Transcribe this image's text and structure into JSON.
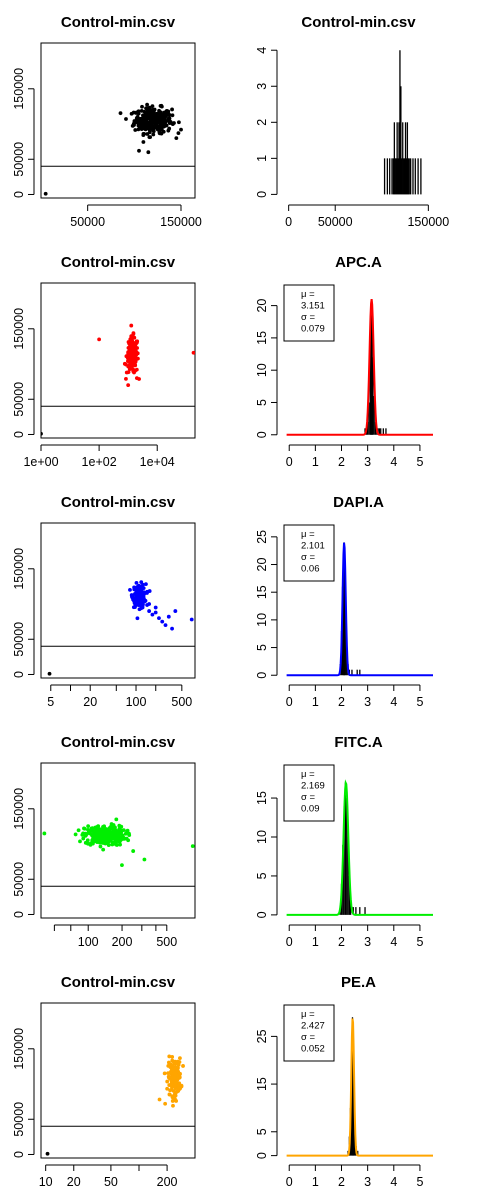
{
  "chart_data": [
    {
      "type": "scatter",
      "title": "Control-min.csv",
      "color": "#000000",
      "x_scale": "linear",
      "xlim": [
        0,
        165000
      ],
      "ylim": [
        -5000,
        215000
      ],
      "x_ticks": [
        {
          "v": 50000,
          "label": "50000"
        },
        {
          "v": 150000,
          "label": "150000"
        }
      ],
      "y_ticks": [
        {
          "v": 0,
          "label": "0"
        },
        {
          "v": 50000,
          "label": "50000"
        },
        {
          "v": 150000,
          "label": "150000"
        }
      ],
      "threshold_y": 40000,
      "cluster": {
        "x_center": 120000,
        "y_center": 105000,
        "x_spread": 10000,
        "y_spread": 9000,
        "n": 300
      },
      "points": [
        [
          5000,
          1000
        ],
        [
          105000,
          62000
        ],
        [
          145000,
          80000
        ],
        [
          115000,
          60000
        ],
        [
          150000,
          92000
        ]
      ]
    },
    {
      "type": "histogram",
      "title": "Control-min.csv",
      "color": "#000000",
      "xlim": [
        -5000,
        155000
      ],
      "ylim": [
        -0.1,
        4.2
      ],
      "x_ticks": [
        {
          "v": 0,
          "label": "0"
        },
        {
          "v": 50000,
          "label": "50000"
        },
        {
          "v": 150000,
          "label": "150000"
        }
      ],
      "y_ticks": [
        {
          "v": 0,
          "label": "0"
        },
        {
          "v": 1,
          "label": "1"
        },
        {
          "v": 2,
          "label": "2"
        },
        {
          "v": 3,
          "label": "3"
        },
        {
          "v": 4,
          "label": "4"
        }
      ],
      "bars": [
        [
          103000,
          1
        ],
        [
          106000,
          1
        ],
        [
          108500,
          1
        ],
        [
          111000,
          1
        ],
        [
          112500,
          1
        ],
        [
          113500,
          2
        ],
        [
          114500,
          1
        ],
        [
          115500,
          1
        ],
        [
          116500,
          2
        ],
        [
          117500,
          1
        ],
        [
          118500,
          2
        ],
        [
          119500,
          4
        ],
        [
          120500,
          3
        ],
        [
          121500,
          1
        ],
        [
          122500,
          2
        ],
        [
          123500,
          1
        ],
        [
          124500,
          1
        ],
        [
          125500,
          2
        ],
        [
          126500,
          1
        ],
        [
          127500,
          2
        ],
        [
          128500,
          1
        ],
        [
          129500,
          1
        ],
        [
          131000,
          1
        ],
        [
          133500,
          1
        ],
        [
          136000,
          1
        ],
        [
          139000,
          1
        ],
        [
          142000,
          1
        ]
      ]
    },
    {
      "type": "scatter",
      "title": "Control-min.csv",
      "color": "#ff0000",
      "x_scale": "log",
      "xlim": [
        0,
        5.3
      ],
      "ylim": [
        -5000,
        215000
      ],
      "x_ticks": [
        {
          "v": 0,
          "label": "1e+00"
        },
        {
          "v": 2,
          "label": "1e+02"
        },
        {
          "v": 4,
          "label": "1e+04"
        }
      ],
      "y_ticks": [
        {
          "v": 0,
          "label": "0"
        },
        {
          "v": 50000,
          "label": "50000"
        },
        {
          "v": 150000,
          "label": "150000"
        }
      ],
      "threshold_y": 40000,
      "cluster": {
        "x_center": 3.15,
        "y_center": 112000,
        "x_spread": 0.1,
        "y_spread": 13000,
        "n": 150
      },
      "points": [
        [
          0,
          1000
        ],
        [
          2.0,
          135000
        ],
        [
          5.25,
          116000
        ],
        [
          3.0,
          70000
        ],
        [
          3.3,
          80000
        ]
      ]
    },
    {
      "type": "histogram",
      "title": "APC.A",
      "color": "#ff0000",
      "xlim": [
        -0.2,
        5.5
      ],
      "ylim": [
        -0.5,
        23.5
      ],
      "x_ticks": [
        {
          "v": 0,
          "label": "0"
        },
        {
          "v": 1,
          "label": "1"
        },
        {
          "v": 2,
          "label": "2"
        },
        {
          "v": 3,
          "label": "3"
        },
        {
          "v": 4,
          "label": "4"
        },
        {
          "v": 5,
          "label": "5"
        }
      ],
      "y_ticks": [
        {
          "v": 0,
          "label": "0"
        },
        {
          "v": 5,
          "label": "5"
        },
        {
          "v": 10,
          "label": "10"
        },
        {
          "v": 15,
          "label": "15"
        },
        {
          "v": 20,
          "label": "20"
        }
      ],
      "legend": [
        "μ =",
        "3.151",
        "σ =",
        "0.079"
      ],
      "normal": {
        "mu": 3.151,
        "sigma": 0.079,
        "peak": 21
      },
      "bars": [
        [
          2.9,
          1
        ],
        [
          2.95,
          1
        ],
        [
          3.0,
          2
        ],
        [
          3.05,
          5
        ],
        [
          3.1,
          13
        ],
        [
          3.125,
          16
        ],
        [
          3.15,
          21
        ],
        [
          3.175,
          17
        ],
        [
          3.2,
          12
        ],
        [
          3.25,
          6
        ],
        [
          3.3,
          2
        ],
        [
          3.35,
          1
        ],
        [
          3.4,
          1
        ],
        [
          3.45,
          1
        ],
        [
          3.5,
          1
        ],
        [
          3.6,
          1
        ],
        [
          3.7,
          1
        ]
      ]
    },
    {
      "type": "scatter",
      "title": "Control-min.csv",
      "color": "#0000ff",
      "x_scale": "log",
      "xlim": [
        0.55,
        2.9
      ],
      "ylim": [
        -5000,
        215000
      ],
      "x_ticks": [
        {
          "v": 0.699,
          "label": "5"
        },
        {
          "v": 1.301,
          "label": "20"
        },
        {
          "v": 2.0,
          "label": "100"
        },
        {
          "v": 2.699,
          "label": "500"
        }
      ],
      "x_minor_ticks": [
        1.0,
        1.699,
        2.301
      ],
      "y_ticks": [
        {
          "v": 0,
          "label": "0"
        },
        {
          "v": 50000,
          "label": "50000"
        },
        {
          "v": 150000,
          "label": "150000"
        }
      ],
      "threshold_y": 40000,
      "cluster": {
        "x_center": 2.05,
        "y_center": 112000,
        "x_spread": 0.05,
        "y_spread": 8000,
        "n": 150
      },
      "points": [
        [
          0.68,
          1000
        ],
        [
          2.1,
          95000
        ],
        [
          2.2,
          90000
        ],
        [
          2.25,
          85000
        ],
        [
          2.3,
          88000
        ],
        [
          2.35,
          80000
        ],
        [
          2.4,
          75000
        ],
        [
          2.45,
          70000
        ],
        [
          2.5,
          82000
        ],
        [
          2.55,
          65000
        ],
        [
          2.6,
          90000
        ],
        [
          2.85,
          78000
        ],
        [
          2.2,
          100000
        ],
        [
          2.3,
          95000
        ]
      ]
    },
    {
      "type": "histogram",
      "title": "DAPI.A",
      "color": "#0000ff",
      "xlim": [
        -0.2,
        5.5
      ],
      "ylim": [
        -0.5,
        27.5
      ],
      "x_ticks": [
        {
          "v": 0,
          "label": "0"
        },
        {
          "v": 1,
          "label": "1"
        },
        {
          "v": 2,
          "label": "2"
        },
        {
          "v": 3,
          "label": "3"
        },
        {
          "v": 4,
          "label": "4"
        },
        {
          "v": 5,
          "label": "5"
        }
      ],
      "y_ticks": [
        {
          "v": 0,
          "label": "0"
        },
        {
          "v": 5,
          "label": "5"
        },
        {
          "v": 10,
          "label": "10"
        },
        {
          "v": 15,
          "label": "15"
        },
        {
          "v": 20,
          "label": "20"
        },
        {
          "v": 25,
          "label": "25"
        }
      ],
      "legend": [
        "μ =",
        "2.101",
        "σ =",
        "0.06"
      ],
      "normal": {
        "mu": 2.101,
        "sigma": 0.06,
        "peak": 24
      },
      "bars": [
        [
          1.95,
          2
        ],
        [
          2.0,
          8
        ],
        [
          2.04,
          16
        ],
        [
          2.08,
          22
        ],
        [
          2.1,
          24
        ],
        [
          2.12,
          21
        ],
        [
          2.16,
          14
        ],
        [
          2.2,
          6
        ],
        [
          2.25,
          2
        ],
        [
          2.3,
          1
        ],
        [
          2.4,
          1
        ],
        [
          2.6,
          1
        ],
        [
          2.7,
          1
        ]
      ]
    },
    {
      "type": "scatter",
      "title": "Control-min.csv",
      "color": "#00ee00",
      "x_scale": "log",
      "xlim": [
        1.58,
        2.95
      ],
      "ylim": [
        -5000,
        215000
      ],
      "x_ticks": [
        {
          "v": 2.0,
          "label": "100"
        },
        {
          "v": 2.301,
          "label": "200"
        },
        {
          "v": 2.699,
          "label": "500"
        }
      ],
      "x_minor_ticks": [
        1.699,
        1.845,
        2.477,
        2.602
      ],
      "y_ticks": [
        {
          "v": 0,
          "label": "0"
        },
        {
          "v": 50000,
          "label": "50000"
        },
        {
          "v": 150000,
          "label": "150000"
        }
      ],
      "threshold_y": 40000,
      "cluster": {
        "x_center": 2.15,
        "y_center": 112000,
        "x_spread": 0.09,
        "y_spread": 7000,
        "n": 300
      },
      "points": [
        [
          1.61,
          115000
        ],
        [
          2.93,
          97000
        ],
        [
          2.5,
          78000
        ],
        [
          2.3,
          70000
        ],
        [
          2.25,
          135000
        ],
        [
          2.4,
          90000
        ]
      ]
    },
    {
      "type": "histogram",
      "title": "FITC.A",
      "color": "#00ee00",
      "xlim": [
        -0.2,
        5.5
      ],
      "ylim": [
        -0.4,
        19.5
      ],
      "x_ticks": [
        {
          "v": 0,
          "label": "0"
        },
        {
          "v": 1,
          "label": "1"
        },
        {
          "v": 2,
          "label": "2"
        },
        {
          "v": 3,
          "label": "3"
        },
        {
          "v": 4,
          "label": "4"
        },
        {
          "v": 5,
          "label": "5"
        }
      ],
      "y_ticks": [
        {
          "v": 0,
          "label": "0"
        },
        {
          "v": 5,
          "label": "5"
        },
        {
          "v": 10,
          "label": "10"
        },
        {
          "v": 15,
          "label": "15"
        }
      ],
      "legend": [
        "μ =",
        "2.169",
        "σ =",
        "0.09"
      ],
      "normal": {
        "mu": 2.169,
        "sigma": 0.09,
        "peak": 17
      },
      "bars": [
        [
          1.95,
          1
        ],
        [
          2.0,
          4
        ],
        [
          2.05,
          9
        ],
        [
          2.1,
          14
        ],
        [
          2.15,
          17
        ],
        [
          2.2,
          15
        ],
        [
          2.25,
          10
        ],
        [
          2.3,
          5
        ],
        [
          2.35,
          2
        ],
        [
          2.45,
          1
        ],
        [
          2.55,
          1
        ],
        [
          2.7,
          1
        ],
        [
          2.9,
          1
        ]
      ]
    },
    {
      "type": "scatter",
      "title": "Control-min.csv",
      "color": "#ffa500",
      "x_scale": "log",
      "xlim": [
        0.95,
        2.6
      ],
      "ylim": [
        -5000,
        215000
      ],
      "x_ticks": [
        {
          "v": 1.0,
          "label": "10"
        },
        {
          "v": 1.301,
          "label": "20"
        },
        {
          "v": 1.699,
          "label": "50"
        },
        {
          "v": 2.301,
          "label": "200"
        }
      ],
      "x_minor_ticks": [
        2.0
      ],
      "y_ticks": [
        {
          "v": 0,
          "label": "0"
        },
        {
          "v": 50000,
          "label": "50000"
        },
        {
          "v": 150000,
          "label": "150000"
        }
      ],
      "threshold_y": 40000,
      "cluster": {
        "x_center": 2.38,
        "y_center": 110000,
        "x_spread": 0.035,
        "y_spread": 13000,
        "n": 150
      },
      "points": [
        [
          1.02,
          1000
        ],
        [
          2.22,
          78000
        ],
        [
          2.28,
          72000
        ],
        [
          2.33,
          85000
        ]
      ]
    },
    {
      "type": "histogram",
      "title": "PE.A",
      "color": "#ffa500",
      "xlim": [
        -0.2,
        5.5
      ],
      "ylim": [
        -0.5,
        32
      ],
      "x_ticks": [
        {
          "v": 0,
          "label": "0"
        },
        {
          "v": 1,
          "label": "1"
        },
        {
          "v": 2,
          "label": "2"
        },
        {
          "v": 3,
          "label": "3"
        },
        {
          "v": 4,
          "label": "4"
        },
        {
          "v": 5,
          "label": "5"
        }
      ],
      "y_ticks": [
        {
          "v": 0,
          "label": "0"
        },
        {
          "v": 5,
          "label": "5"
        },
        {
          "v": 15,
          "label": "15"
        },
        {
          "v": 25,
          "label": "25"
        }
      ],
      "legend": [
        "μ =",
        "2.427",
        "σ =",
        "0.052"
      ],
      "normal": {
        "mu": 2.427,
        "sigma": 0.052,
        "peak": 29
      },
      "bars": [
        [
          2.25,
          1
        ],
        [
          2.3,
          4
        ],
        [
          2.34,
          10
        ],
        [
          2.38,
          20
        ],
        [
          2.42,
          29
        ],
        [
          2.45,
          25
        ],
        [
          2.48,
          15
        ],
        [
          2.52,
          7
        ],
        [
          2.56,
          2
        ],
        [
          2.62,
          1
        ]
      ]
    }
  ]
}
